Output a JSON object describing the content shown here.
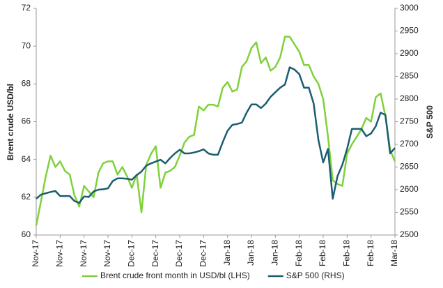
{
  "chart_data": {
    "type": "line",
    "y_label": "Brent crude USD/bl",
    "y2_label": "S&P 500",
    "categories": [
      "Nov-17",
      null,
      null,
      null,
      null,
      "Nov-17",
      null,
      null,
      null,
      null,
      "Nov-17",
      null,
      null,
      null,
      null,
      "Nov-17",
      null,
      null,
      null,
      null,
      "Dec-17",
      null,
      null,
      null,
      null,
      "Dec-17",
      null,
      null,
      null,
      null,
      "Dec-17",
      null,
      null,
      null,
      null,
      "Dec-17",
      null,
      null,
      null,
      null,
      "Jan-18",
      null,
      null,
      null,
      null,
      "Jan-18",
      null,
      null,
      null,
      null,
      "Jan-18",
      null,
      null,
      null,
      null,
      "Feb-18",
      null,
      null,
      null,
      null,
      "Feb-18",
      null,
      null,
      null,
      null,
      "Feb-18",
      null,
      null,
      null,
      null,
      "Feb-18",
      null,
      null,
      null,
      null,
      "Mar-18"
    ],
    "series": [
      {
        "name": "Brent crude front month in USD/bl (LHS)",
        "color": "#7fd13b",
        "axis": "y",
        "values": [
          60.5,
          61.8,
          63.1,
          64.2,
          63.6,
          63.9,
          63.4,
          63.2,
          62.1,
          61.5,
          62.6,
          62.3,
          62.0,
          63.3,
          63.8,
          63.9,
          63.9,
          63.2,
          63.6,
          63.1,
          62.5,
          63.2,
          61.2,
          63.7,
          64.3,
          64.7,
          62.5,
          63.3,
          63.4,
          63.6,
          64.2,
          64.9,
          65.2,
          65.3,
          66.8,
          66.6,
          66.9,
          66.9,
          66.8,
          67.8,
          68.1,
          67.6,
          67.7,
          68.9,
          69.2,
          69.9,
          70.2,
          69.1,
          69.4,
          68.7,
          68.9,
          69.4,
          70.5,
          70.5,
          70.1,
          69.7,
          69.0,
          69.0,
          68.4,
          68.0,
          67.2,
          65.2,
          62.9,
          62.7,
          62.6,
          64.3,
          64.8,
          65.2,
          65.6,
          66.2,
          66.0,
          67.3,
          67.5,
          66.3,
          64.5,
          63.9
        ]
      },
      {
        "name": "S&P 500 (RHS)",
        "color": "#1a5c70",
        "axis": "y2",
        "values": [
          2580,
          2589,
          2592,
          2595,
          2597,
          2586,
          2586,
          2586,
          2575,
          2571,
          2585,
          2584,
          2596,
          2600,
          2601,
          2603,
          2619,
          2625,
          2625,
          2624,
          2622,
          2632,
          2640,
          2653,
          2658,
          2662,
          2666,
          2658,
          2670,
          2680,
          2688,
          2680,
          2680,
          2682,
          2685,
          2689,
          2680,
          2677,
          2677,
          2705,
          2730,
          2743,
          2745,
          2748,
          2770,
          2788,
          2788,
          2780,
          2790,
          2805,
          2815,
          2825,
          2832,
          2870,
          2865,
          2855,
          2825,
          2825,
          2790,
          2710,
          2660,
          2690,
          2580,
          2630,
          2655,
          2690,
          2734,
          2734,
          2734,
          2718,
          2724,
          2740,
          2770,
          2765,
          2680,
          2692
        ]
      }
    ],
    "ylim": [
      60,
      72
    ],
    "yticks": [
      60,
      62,
      64,
      66,
      68,
      70,
      72
    ],
    "y2lim": [
      2500,
      3000
    ],
    "y2ticks": [
      2500,
      2550,
      2600,
      2650,
      2700,
      2750,
      2800,
      2850,
      2900,
      2950,
      3000
    ],
    "grid": false,
    "legend": "bottom"
  }
}
